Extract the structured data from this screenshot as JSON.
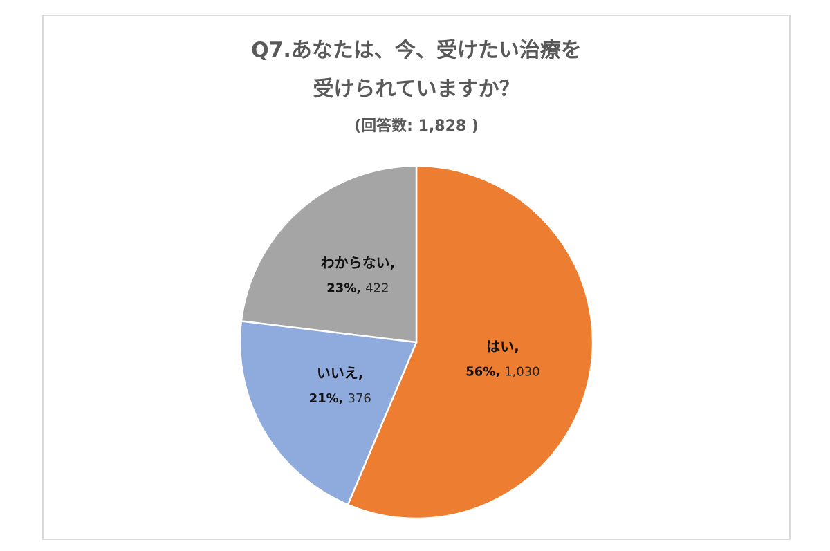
{
  "chart_data": {
    "type": "pie",
    "title": [
      "Q7.あなたは、今、受けたい治療を",
      "受けられていますか？"
    ],
    "subtitle": "(回答数: 1,828 )",
    "categories": [
      "はい,",
      "いいえ,",
      "わからない,"
    ],
    "values": [
      1030,
      376,
      422
    ],
    "value_labels": [
      "1,030",
      "376",
      "422"
    ],
    "percentages": [
      56,
      21,
      23
    ],
    "percentage_labels": [
      "56%,",
      "21%,",
      "23%,"
    ],
    "colors": [
      "#ed7d31",
      "#8faadc",
      "#a5a5a5"
    ]
  }
}
